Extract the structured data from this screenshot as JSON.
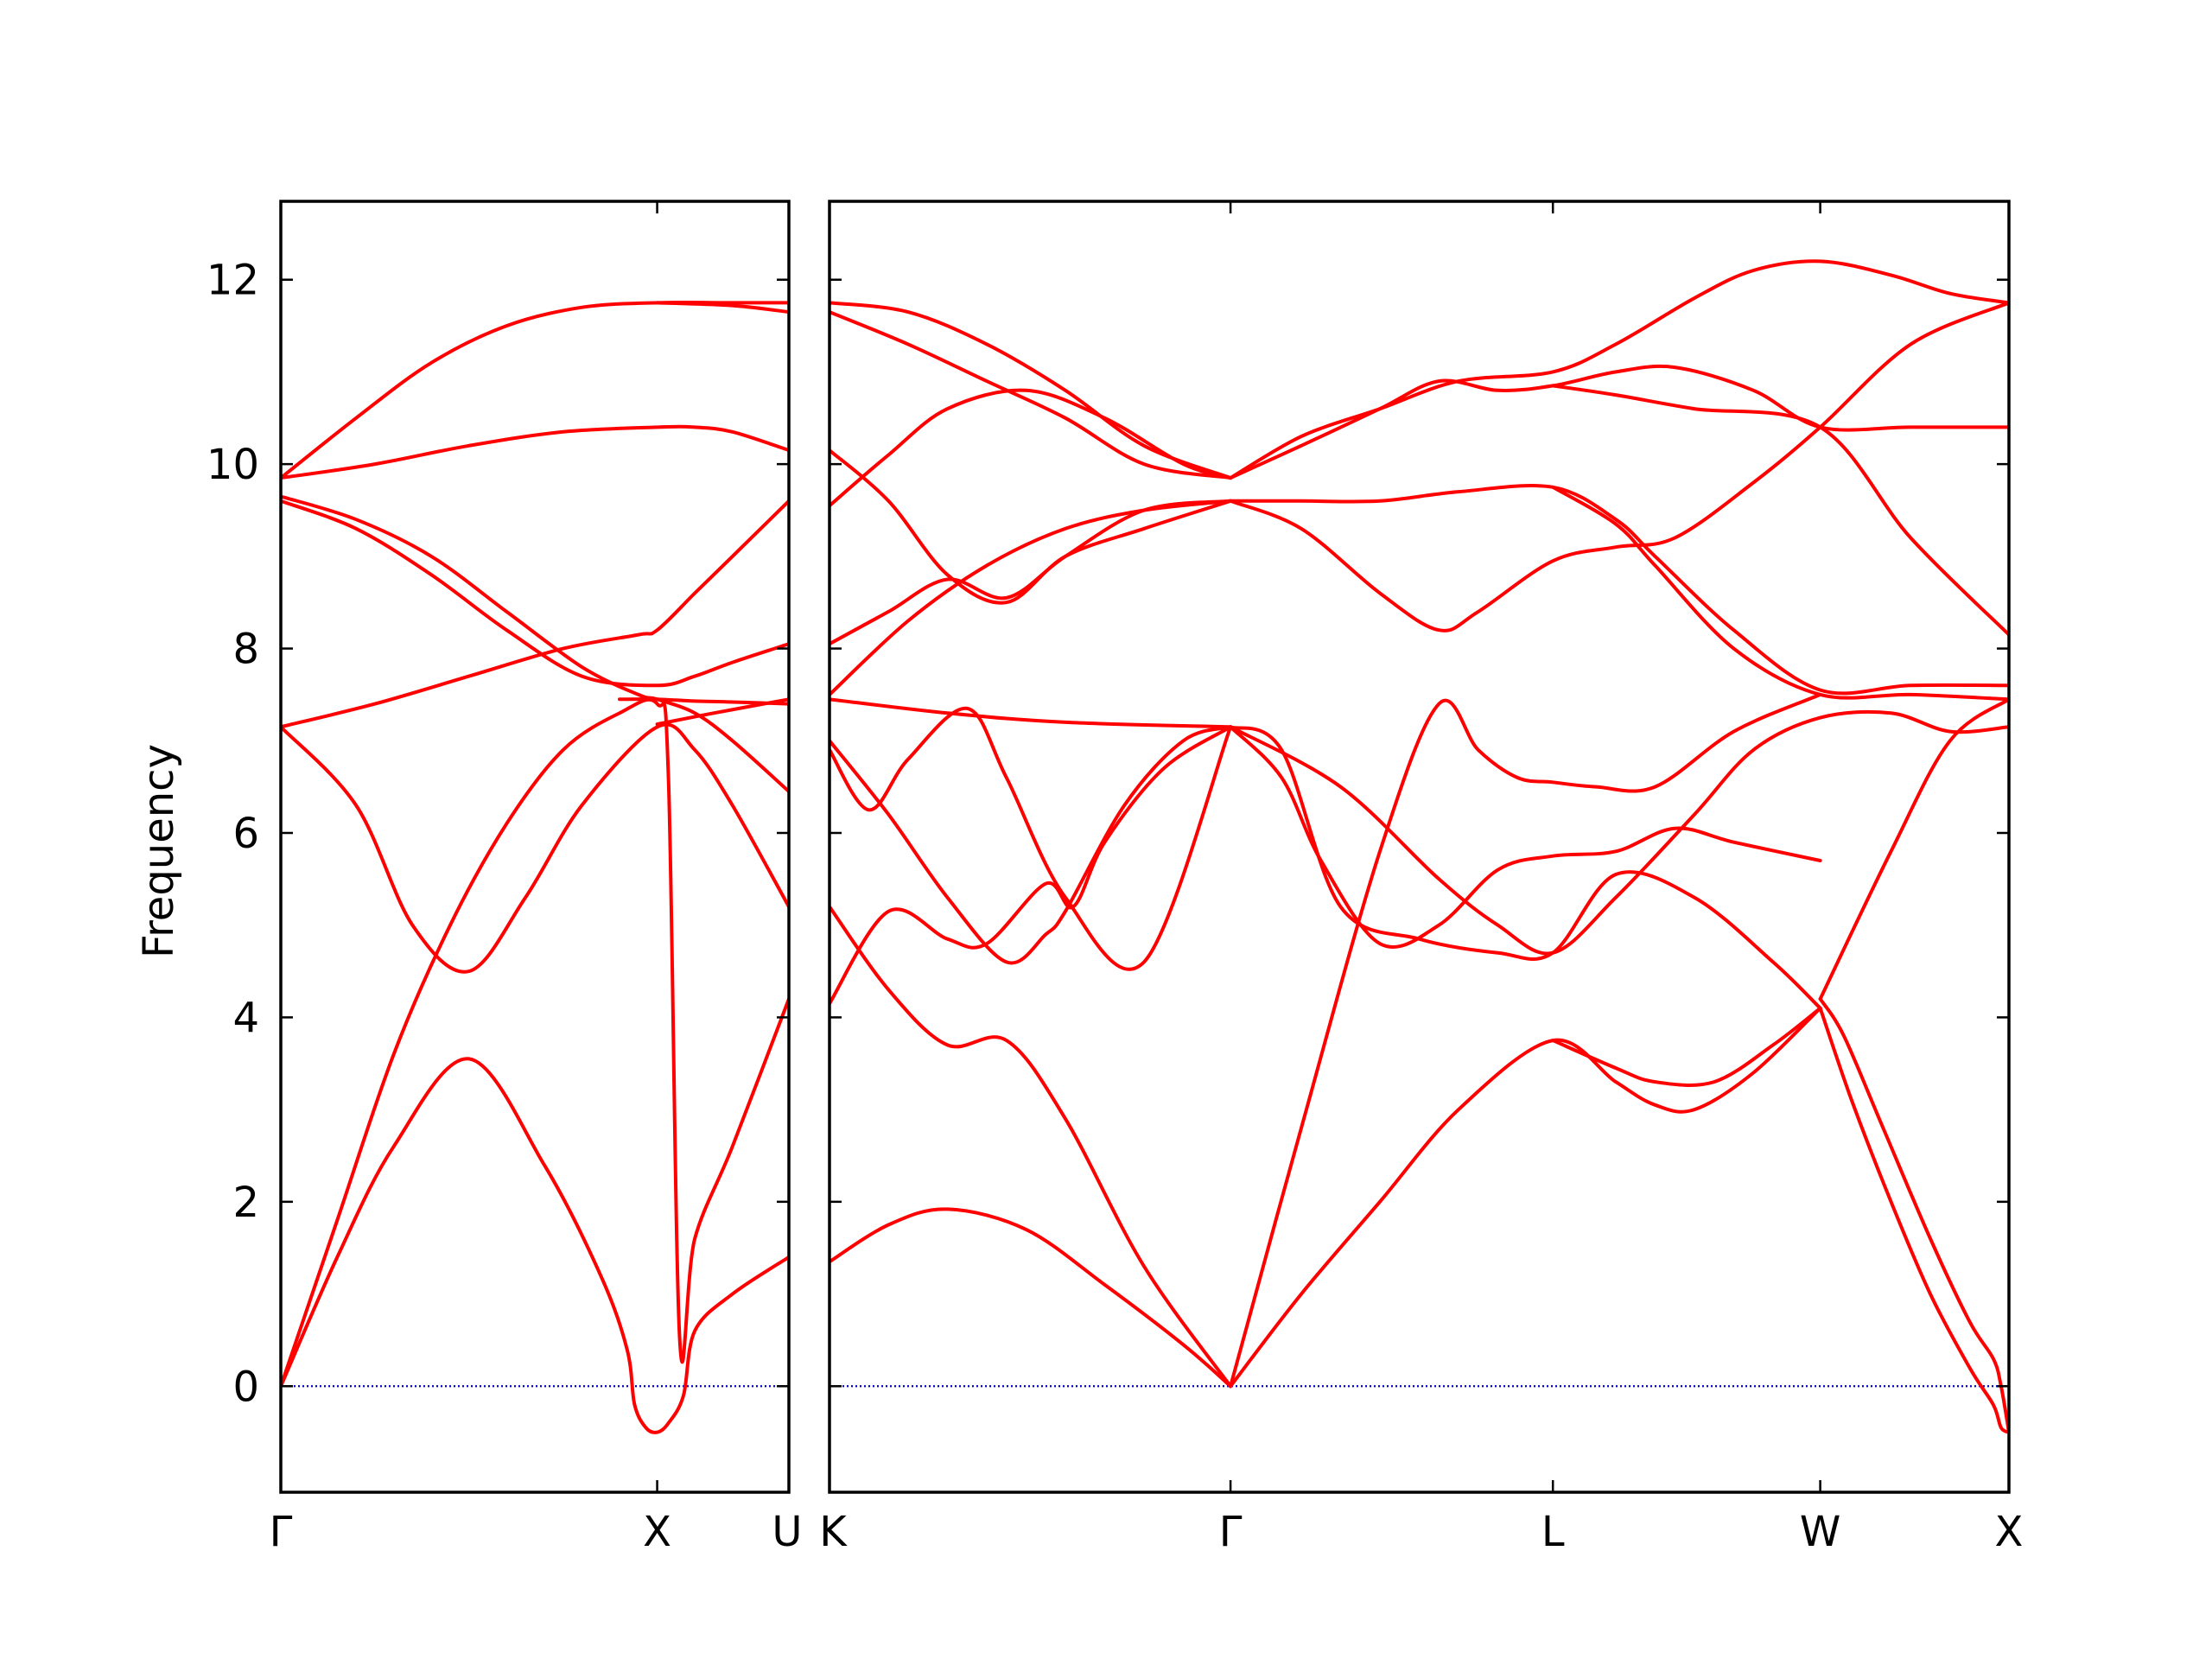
{
  "chart_data": {
    "type": "line",
    "title": "",
    "ylabel": "Frequency",
    "ylim": [
      -1.15,
      12.85
    ],
    "yticks": [
      0,
      2,
      4,
      6,
      8,
      10,
      12
    ],
    "colors": {
      "bands": "#ff0000",
      "zero_line": "#0000cc",
      "axes": "#000000"
    },
    "zero_line": {
      "style": "dotted",
      "y": 0
    },
    "panels": [
      {
        "name": "Gamma-X-U",
        "x_range": [
          0,
          1.35
        ],
        "high_symmetry_points": [
          {
            "label": "Γ",
            "x": 0
          },
          {
            "label": "X",
            "x": 1.0
          },
          {
            "label": "U",
            "x": 1.35
          }
        ],
        "bands": [
          {
            "x": [
              0,
              0.15,
              0.3,
              0.5,
              0.7,
              0.85,
              0.92,
              0.94,
              0.97,
              1.0,
              1.03,
              1.07,
              1.1,
              1.2,
              1.35
            ],
            "y": [
              0,
              1.4,
              2.6,
              3.55,
              2.4,
              1.2,
              0.4,
              -0.2,
              -0.45,
              -0.5,
              -0.4,
              -0.1,
              0.6,
              1.0,
              1.4
            ]
          },
          {
            "x": [
              0,
              0.15,
              0.3,
              0.45,
              0.6,
              0.75,
              0.9,
              1.0,
              1.03,
              1.06,
              1.1,
              1.2,
              1.35
            ],
            "y": [
              0,
              1.8,
              3.6,
              5.0,
              6.1,
              6.9,
              7.3,
              7.4,
              6.6,
              0.5,
              1.6,
              2.6,
              4.2
            ]
          },
          {
            "x": [
              0,
              0.2,
              0.35,
              0.5,
              0.65,
              0.8,
              1.0,
              1.1,
              1.2,
              1.35
            ],
            "y": [
              7.15,
              6.3,
              5.0,
              4.5,
              5.3,
              6.3,
              7.15,
              6.9,
              6.3,
              5.2
            ]
          },
          {
            "x": [
              0,
              0.25,
              0.5,
              0.75,
              0.95,
              1.0,
              1.1,
              1.2,
              1.35
            ],
            "y": [
              7.15,
              7.4,
              7.7,
              8.0,
              8.15,
              8.2,
              8.6,
              9.0,
              9.6
            ]
          },
          {
            "x": [
              0,
              0.2,
              0.4,
              0.6,
              0.8,
              1.0,
              1.1,
              1.2,
              1.35
            ],
            "y": [
              9.6,
              9.3,
              8.8,
              8.2,
              7.7,
              7.6,
              7.7,
              7.85,
              8.05
            ]
          },
          {
            "x": [
              0,
              0.2,
              0.4,
              0.6,
              0.8,
              0.95,
              1.0,
              1.1,
              1.2,
              1.35
            ],
            "y": [
              9.65,
              9.4,
              9.0,
              8.4,
              7.8,
              7.5,
              7.45,
              7.3,
              7.0,
              6.45
            ]
          },
          {
            "x": [
              0,
              0.25,
              0.5,
              0.75,
              1.0,
              1.1,
              1.2,
              1.35
            ],
            "y": [
              9.85,
              10.0,
              10.2,
              10.35,
              10.4,
              10.4,
              10.35,
              10.15
            ]
          },
          {
            "x": [
              0,
              0.2,
              0.4,
              0.6,
              0.8,
              1.0,
              1.2,
              1.35
            ],
            "y": [
              9.85,
              10.5,
              11.1,
              11.5,
              11.7,
              11.75,
              11.75,
              11.75
            ]
          },
          {
            "x": [
              0.9,
              1.0,
              1.1,
              1.2,
              1.35
            ],
            "y": [
              7.45,
              7.45,
              7.43,
              7.42,
              7.4
            ]
          },
          {
            "x": [
              1.0,
              1.15,
              1.35
            ],
            "y": [
              7.18,
              7.3,
              7.45
            ]
          },
          {
            "x": [
              1.0,
              1.2,
              1.35
            ],
            "y": [
              11.75,
              11.72,
              11.65
            ]
          }
        ]
      },
      {
        "name": "K-Gamma-L-W-X",
        "x_range": [
          0,
          3.0
        ],
        "high_symmetry_points": [
          {
            "label": "K",
            "x": 0
          },
          {
            "label": "Γ",
            "x": 1.02
          },
          {
            "label": "L",
            "x": 1.84
          },
          {
            "label": "W",
            "x": 2.52
          },
          {
            "label": "X",
            "x": 3.0
          }
        ],
        "bands": [
          {
            "x": [
              0,
              0.15,
              0.3,
              0.5,
              0.7,
              0.9,
              1.02
            ],
            "y": [
              1.35,
              1.75,
              1.92,
              1.7,
              1.1,
              0.45,
              0
            ]
          },
          {
            "x": [
              1.02,
              1.2,
              1.4,
              1.6,
              1.84,
              2.0,
              2.1,
              2.2,
              2.35,
              2.52
            ],
            "y": [
              0,
              1.0,
              2.0,
              3.0,
              3.75,
              3.3,
              3.05,
              3.0,
              3.4,
              4.1
            ]
          },
          {
            "x": [
              1.84,
              2.0,
              2.1,
              2.25,
              2.4,
              2.52
            ],
            "y": [
              3.75,
              3.45,
              3.3,
              3.3,
              3.7,
              4.1
            ]
          },
          {
            "x": [
              2.52,
              2.6,
              2.7,
              2.8,
              2.9,
              2.96,
              2.98,
              3.0
            ],
            "y": [
              4.1,
              3.1,
              2.0,
              1.0,
              0.2,
              -0.2,
              -0.45,
              -0.5
            ]
          },
          {
            "x": [
              2.52,
              2.58,
              2.68,
              2.8,
              2.9,
              2.96,
              2.98,
              3.0
            ],
            "y": [
              4.2,
              3.8,
              2.8,
              1.6,
              0.7,
              0.3,
              0,
              -0.5
            ]
          },
          {
            "x": [
              0,
              0.15,
              0.3,
              0.45,
              0.6,
              0.8,
              1.02
            ],
            "y": [
              5.2,
              4.3,
              3.7,
              3.75,
              2.9,
              1.3,
              0
            ]
          },
          {
            "x": [
              1.02,
              1.2,
              1.4,
              1.55,
              1.65,
              1.75,
              1.84,
              1.95,
              2.1,
              2.3,
              2.52
            ],
            "y": [
              0,
              2.8,
              5.8,
              7.4,
              6.9,
              6.6,
              6.55,
              6.5,
              6.5,
              7.1,
              7.5
            ]
          },
          {
            "x": [
              0,
              0.15,
              0.3,
              0.4,
              0.55,
              0.62,
              0.7,
              0.85,
              1.02
            ],
            "y": [
              4.15,
              5.15,
              4.85,
              4.8,
              5.45,
              5.2,
              5.9,
              6.7,
              7.15
            ]
          },
          {
            "x": [
              1.02,
              1.15,
              1.25,
              1.4,
              1.55,
              1.7,
              1.84,
              2.0,
              2.15,
              2.3,
              2.52
            ],
            "y": [
              7.15,
              6.6,
              5.7,
              4.8,
              5.0,
              5.6,
              5.75,
              5.8,
              6.05,
              5.9,
              5.7
            ]
          },
          {
            "x": [
              0,
              0.15,
              0.3,
              0.45,
              0.55,
              0.6,
              0.75,
              0.9,
              1.02
            ],
            "y": [
              7.0,
              6.2,
              5.3,
              4.6,
              4.9,
              5.15,
              6.3,
              7.0,
              7.15
            ]
          },
          {
            "x": [
              1.02,
              1.15,
              1.3,
              1.5,
              1.7,
              1.84,
              2.0,
              2.2,
              2.4,
              2.52
            ],
            "y": [
              7.15,
              6.9,
              5.2,
              4.85,
              4.7,
              4.7,
              5.55,
              5.3,
              4.6,
              4.1
            ]
          },
          {
            "x": [
              0,
              0.1,
              0.2,
              0.35,
              0.45,
              0.6,
              0.8,
              1.02
            ],
            "y": [
              6.9,
              6.25,
              6.8,
              7.35,
              6.6,
              5.3,
              4.6,
              7.15
            ]
          },
          {
            "x": [
              0,
              0.3,
              0.6,
              1.02
            ],
            "y": [
              7.45,
              7.3,
              7.2,
              7.15
            ]
          },
          {
            "x": [
              1.02,
              1.3,
              1.55,
              1.7,
              1.84,
              2.0,
              2.2,
              2.35,
              2.52,
              2.7,
              2.85,
              3.0
            ],
            "y": [
              7.15,
              6.5,
              5.5,
              5.0,
              4.7,
              5.3,
              6.2,
              6.9,
              7.25,
              7.3,
              7.1,
              7.15
            ]
          },
          {
            "x": [
              2.52,
              2.7,
              2.85,
              3.0
            ],
            "y": [
              4.2,
              5.8,
              7.0,
              7.45
            ]
          },
          {
            "x": [
              0,
              0.2,
              0.4,
              0.6,
              0.8,
              1.02
            ],
            "y": [
              7.5,
              8.3,
              8.9,
              9.3,
              9.5,
              9.6
            ]
          },
          {
            "x": [
              0,
              0.15,
              0.3,
              0.45,
              0.6,
              0.8,
              1.02
            ],
            "y": [
              8.05,
              8.4,
              8.75,
              8.55,
              9.0,
              9.5,
              9.6
            ]
          },
          {
            "x": [
              1.02,
              1.2,
              1.4,
              1.55,
              1.65,
              1.84,
              2.0,
              2.15,
              2.35,
              2.52,
              2.75,
              3.0
            ],
            "y": [
              9.6,
              9.3,
              8.6,
              8.2,
              8.4,
              8.95,
              9.1,
              9.2,
              9.8,
              10.4,
              11.3,
              11.75
            ]
          },
          {
            "x": [
              1.02,
              1.2,
              1.4,
              1.6,
              1.84,
              2.0,
              2.1,
              2.3,
              2.52,
              2.75,
              3.0
            ],
            "y": [
              9.6,
              9.6,
              9.6,
              9.7,
              9.75,
              9.4,
              9.0,
              8.2,
              7.55,
              7.6,
              7.6
            ]
          },
          {
            "x": [
              1.84,
              2.0,
              2.1,
              2.3,
              2.52,
              2.75,
              3.0
            ],
            "y": [
              9.75,
              9.35,
              8.9,
              8.0,
              7.5,
              7.5,
              7.45
            ]
          },
          {
            "x": [
              0,
              0.15,
              0.3,
              0.5,
              0.7,
              0.9,
              1.02
            ],
            "y": [
              9.55,
              10.1,
              10.6,
              10.8,
              10.5,
              10.0,
              9.85
            ]
          },
          {
            "x": [
              0,
              0.15,
              0.3,
              0.45,
              0.6,
              0.8,
              1.02
            ],
            "y": [
              10.15,
              9.6,
              8.8,
              8.5,
              9.0,
              9.3,
              9.6
            ]
          },
          {
            "x": [
              1.02,
              1.2,
              1.4,
              1.55,
              1.7,
              1.84,
              2.0,
              2.15,
              2.35,
              2.52,
              2.75,
              3.0
            ],
            "y": [
              9.85,
              10.2,
              10.6,
              10.9,
              10.8,
              10.85,
              11.0,
              11.05,
              10.8,
              10.4,
              10.4,
              10.4
            ]
          },
          {
            "x": [
              1.02,
              1.2,
              1.4,
              1.6,
              1.84,
              2.0,
              2.2,
              2.35,
              2.52,
              2.7,
              2.85,
              3.0
            ],
            "y": [
              9.85,
              10.3,
              10.6,
              10.9,
              11.0,
              11.3,
              11.8,
              12.1,
              12.2,
              12.05,
              11.85,
              11.75
            ]
          },
          {
            "x": [
              1.84,
              2.0,
              2.2,
              2.52,
              2.75,
              3.0
            ],
            "y": [
              10.85,
              10.75,
              10.6,
              10.4,
              9.2,
              8.15
            ]
          },
          {
            "x": [
              0,
              0.2,
              0.4,
              0.6,
              0.8,
              1.02
            ],
            "y": [
              11.75,
              11.65,
              11.3,
              10.8,
              10.2,
              9.85
            ]
          },
          {
            "x": [
              0,
              0.2,
              0.4,
              0.6,
              0.8,
              1.02
            ],
            "y": [
              11.65,
              11.3,
              10.9,
              10.5,
              10.0,
              9.85
            ]
          }
        ]
      }
    ]
  }
}
